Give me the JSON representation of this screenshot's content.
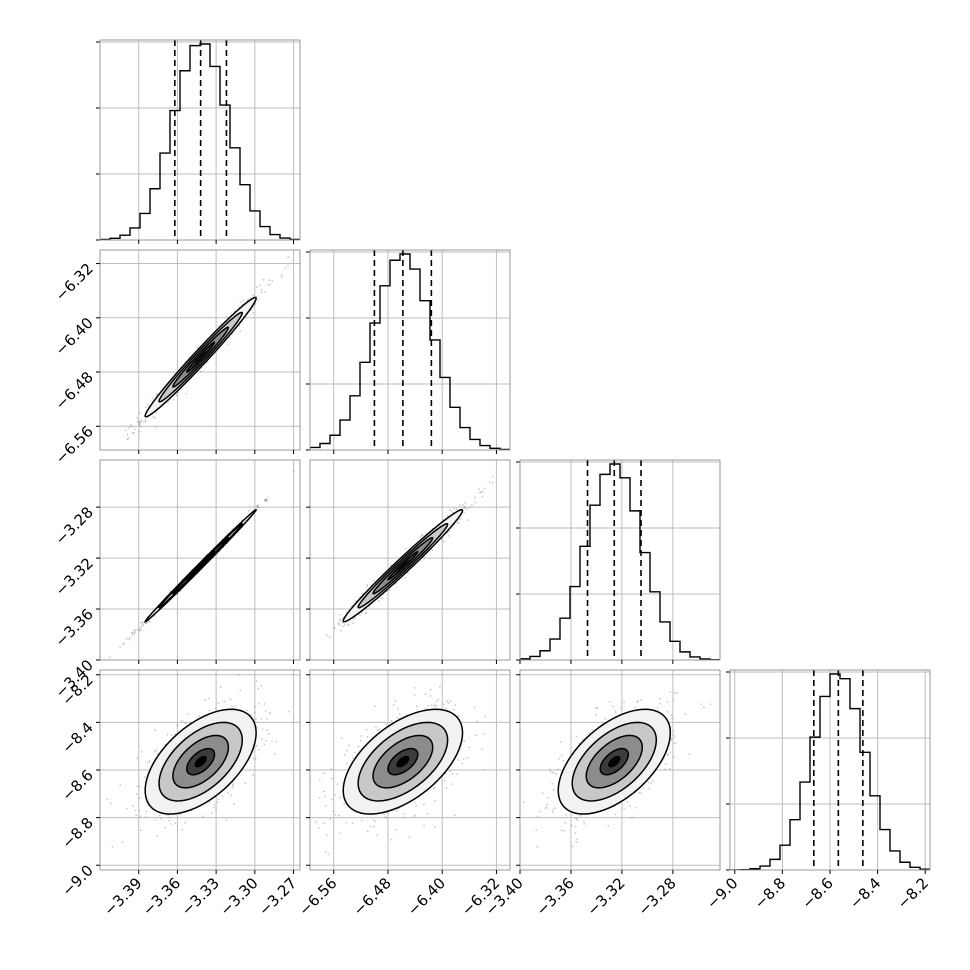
{
  "chart_data": {
    "type": "corner",
    "parameters": [
      {
        "name": "",
        "range": [
          -3.42,
          -3.265
        ],
        "ticks": [
          -3.39,
          -3.36,
          -3.33,
          -3.3,
          -3.27
        ],
        "tick_labels": [
          "−3.39",
          "−3.36",
          "−3.33",
          "−3.30",
          "−3.27"
        ],
        "quantiles": [
          -3.362,
          -3.342,
          -3.322
        ],
        "peak": -3.342,
        "sigma": 0.0215
      },
      {
        "name": "",
        "range": [
          -6.595,
          -6.3
        ],
        "ticks": [
          -6.56,
          -6.48,
          -6.4,
          -6.32
        ],
        "tick_labels": [
          "−6.56",
          "−6.48",
          "−6.40",
          "−6.32"
        ],
        "quantiles": [
          -6.5,
          -6.458,
          -6.416
        ],
        "peak": -6.458,
        "sigma": 0.044
      },
      {
        "name": "",
        "range": [
          -3.4,
          -3.243
        ],
        "ticks": [
          -3.4,
          -3.36,
          -3.32,
          -3.28
        ],
        "tick_labels": [
          "−3.40",
          "−3.36",
          "−3.32",
          "−3.28"
        ],
        "quantiles": [
          -3.347,
          -3.326,
          -3.305
        ],
        "peak": -3.326,
        "sigma": 0.022
      },
      {
        "name": "",
        "range": [
          -9.02,
          -8.18
        ],
        "ticks": [
          -9.0,
          -8.8,
          -8.6,
          -8.4,
          -8.2
        ],
        "tick_labels": [
          "−9.0",
          "−8.8",
          "−8.6",
          "−8.4",
          "−8.2"
        ],
        "quantiles": [
          -8.668,
          -8.565,
          -8.462
        ],
        "peak": -8.565,
        "sigma": 0.11
      }
    ],
    "correlations": [
      {
        "pair": [
          1,
          0
        ],
        "rho": 0.985
      },
      {
        "pair": [
          2,
          0
        ],
        "rho": 0.998
      },
      {
        "pair": [
          2,
          1
        ],
        "rho": 0.985
      },
      {
        "pair": [
          3,
          0
        ],
        "rho": 0.55
      },
      {
        "pair": [
          3,
          1
        ],
        "rho": 0.55
      },
      {
        "pair": [
          3,
          2
        ],
        "rho": 0.55
      }
    ],
    "histogram_bins": 20,
    "contour_levels_sigma": [
      0.5,
      1.0,
      1.5,
      2.0
    ],
    "grid": true,
    "colors": {
      "marks": "#000000",
      "scatter": "#888888",
      "grid": "#bdbdbd"
    }
  }
}
